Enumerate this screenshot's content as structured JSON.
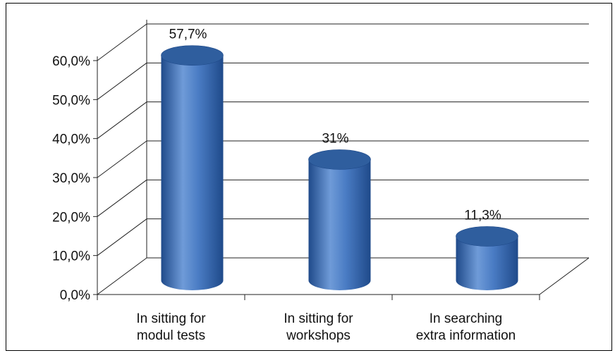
{
  "chart_data": {
    "type": "bar",
    "style": "3d-cylinder",
    "categories": [
      [
        "In sitting  for",
        "modul tests"
      ],
      [
        "In sitting  for",
        "workshops"
      ],
      [
        "In searching",
        "extra information"
      ]
    ],
    "values": [
      57.7,
      31,
      11.3
    ],
    "data_labels": [
      "57,7%",
      "31%",
      "11,3%"
    ],
    "title": "",
    "xlabel": "",
    "ylabel": "",
    "ylim": [
      0,
      60
    ],
    "y_ticks": [
      "0,0%",
      "10,0%",
      "20,0%",
      "30,0%",
      "40,0%",
      "50,0%",
      "60,0%"
    ],
    "grid": true,
    "legend": "none",
    "colors": {
      "bar_light": "#6f9bd8",
      "bar_mid": "#3f6fb5",
      "bar_dark": "#1f4a8a",
      "bar_top": "#2f5e9e",
      "grid": "#222222"
    }
  }
}
